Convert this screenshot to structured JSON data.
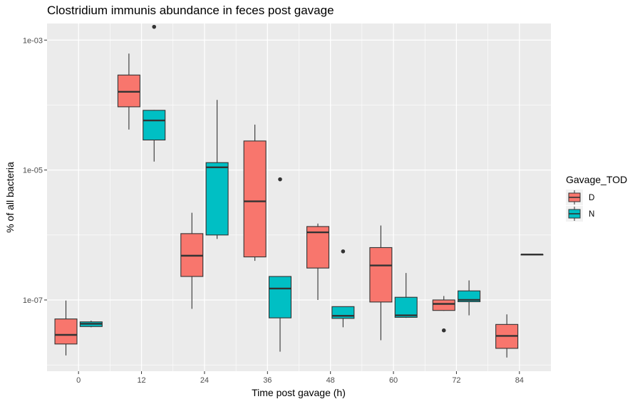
{
  "chart_data": {
    "type": "boxplot",
    "title": "Clostridium immunis abundance in feces post gavage",
    "xlabel": "Time post gavage (h)",
    "ylabel": "% of all bacteria",
    "y_scale": "log10",
    "ylim": [
      8e-09,
      0.0018
    ],
    "y_ticks": [
      {
        "value": 1e-07,
        "label": "1e-07"
      },
      {
        "value": 1e-05,
        "label": "1e-05"
      },
      {
        "value": 0.001,
        "label": "1e-03"
      }
    ],
    "xlim": [
      -6,
      90
    ],
    "x_ticks": [
      0,
      12,
      24,
      36,
      48,
      60,
      72,
      84
    ],
    "grid": true,
    "legend": {
      "title": "Gavage_TOD",
      "position": "right",
      "entries": [
        {
          "label": "D",
          "color": "#F8766D"
        },
        {
          "label": "N",
          "color": "#00BFC4"
        }
      ]
    },
    "colors": {
      "D": "#F8766D",
      "N": "#00BFC4",
      "panel": "#EBEBEB",
      "grid": "#FFFFFF"
    },
    "series": [
      {
        "name": "D",
        "boxes": [
          {
            "x": 0,
            "whisker_low": 1.4e-08,
            "q1": 2.1e-08,
            "median": 2.9e-08,
            "q3": 5.1e-08,
            "whisker_high": 9.8e-08,
            "outliers": []
          },
          {
            "x": 12,
            "whisker_low": 4.2e-05,
            "q1": 9.4e-05,
            "median": 0.00016,
            "q3": 0.00029,
            "whisker_high": 0.00062,
            "outliers": []
          },
          {
            "x": 24,
            "whisker_low": 7.3e-08,
            "q1": 2.3e-07,
            "median": 4.8e-07,
            "q3": 1.05e-06,
            "whisker_high": 2.2e-06,
            "outliers": []
          },
          {
            "x": 36,
            "whisker_low": 4e-07,
            "q1": 4.6e-07,
            "median": 3.3e-06,
            "q3": 2.8e-05,
            "whisker_high": 5e-05,
            "outliers": []
          },
          {
            "x": 48,
            "whisker_low": 1e-07,
            "q1": 3.1e-07,
            "median": 1.1e-06,
            "q3": 1.35e-06,
            "whisker_high": 1.5e-06,
            "outliers": []
          },
          {
            "x": 60,
            "whisker_low": 2.4e-08,
            "q1": 9.3e-08,
            "median": 3.4e-07,
            "q3": 6.4e-07,
            "whisker_high": 1.4e-06,
            "outliers": []
          },
          {
            "x": 72,
            "whisker_low": 6.8e-08,
            "q1": 6.9e-08,
            "median": 8.7e-08,
            "q3": 1e-07,
            "whisker_high": 1.15e-07,
            "outliers": [
              3.4e-08
            ]
          },
          {
            "x": 84,
            "whisker_low": 1.3e-08,
            "q1": 1.8e-08,
            "median": 2.8e-08,
            "q3": 4.2e-08,
            "whisker_high": 6e-08,
            "outliers": []
          }
        ]
      },
      {
        "name": "N",
        "boxes": [
          {
            "x": 0,
            "whisker_low": 3.8e-08,
            "q1": 3.9e-08,
            "median": 4.3e-08,
            "q3": 4.6e-08,
            "whisker_high": 4.8e-08,
            "outliers": []
          },
          {
            "x": 12,
            "whisker_low": 1.35e-05,
            "q1": 2.9e-05,
            "median": 5.8e-05,
            "q3": 8.3e-05,
            "whisker_high": 8.4e-05,
            "outliers": [
              0.0016
            ]
          },
          {
            "x": 24,
            "whisker_low": 8.7e-07,
            "q1": 1e-06,
            "median": 1.1e-05,
            "q3": 1.3e-05,
            "whisker_high": 0.00012,
            "outliers": []
          },
          {
            "x": 36,
            "whisker_low": 1.6e-08,
            "q1": 5.3e-08,
            "median": 1.5e-07,
            "q3": 2.3e-07,
            "whisker_high": 2.3e-07,
            "outliers": [
              7.2e-06
            ]
          },
          {
            "x": 48,
            "whisker_low": 3.8e-08,
            "q1": 5.2e-08,
            "median": 5.7e-08,
            "q3": 7.9e-08,
            "whisker_high": 7.9e-08,
            "outliers": [
              5.6e-07
            ]
          },
          {
            "x": 60,
            "whisker_low": 5.3e-08,
            "q1": 5.4e-08,
            "median": 5.8e-08,
            "q3": 1.1e-07,
            "whisker_high": 2.6e-07,
            "outliers": []
          },
          {
            "x": 72,
            "whisker_low": 5.8e-08,
            "q1": 9.4e-08,
            "median": 1e-07,
            "q3": 1.38e-07,
            "whisker_high": 2e-07,
            "outliers": []
          },
          {
            "x": 84,
            "whisker_low": 5e-07,
            "q1": 5e-07,
            "median": 5e-07,
            "q3": 5e-07,
            "whisker_high": 5e-07,
            "outliers": []
          }
        ]
      }
    ]
  }
}
